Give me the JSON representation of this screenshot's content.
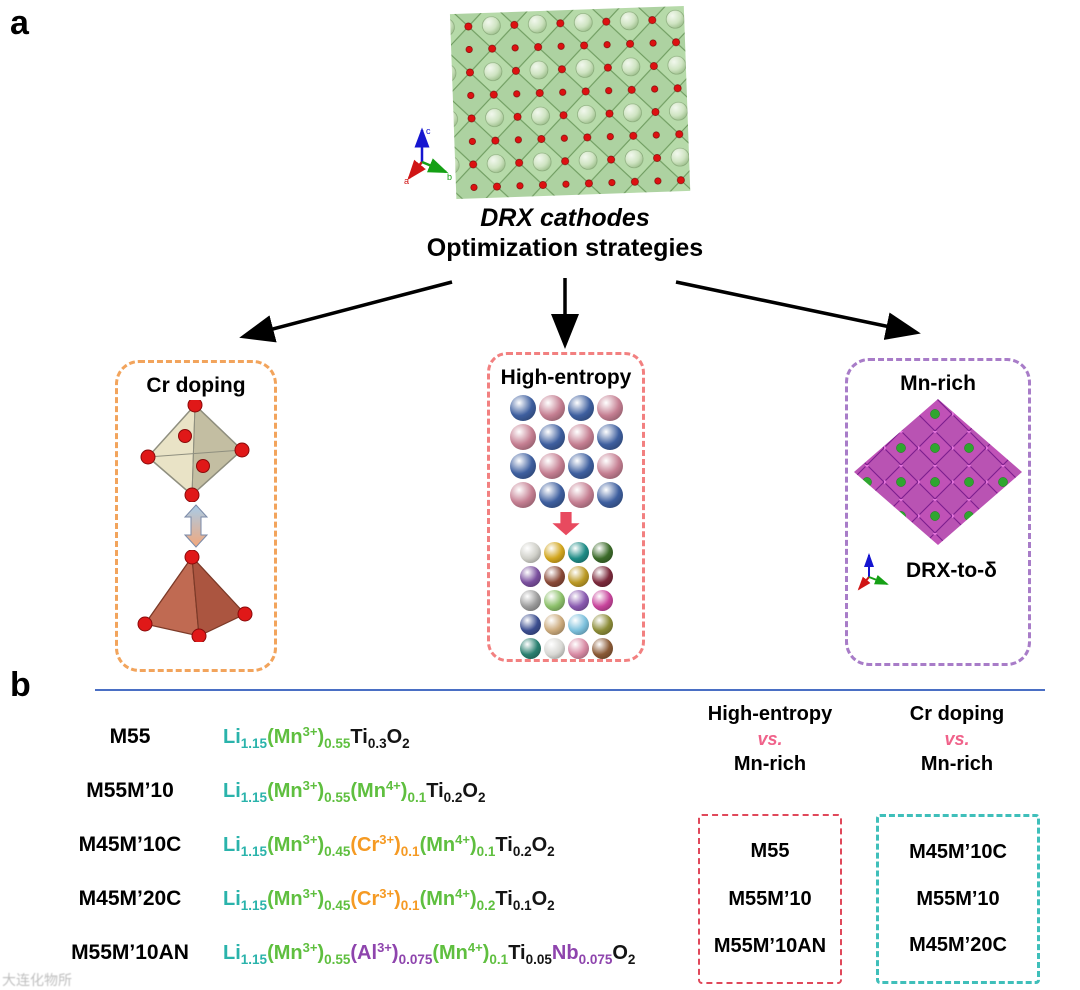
{
  "panel_a": {
    "label": "a",
    "title_line1": "DRX cathodes",
    "title_line2": "Optimization strategies",
    "axis_labels": {
      "a": "a",
      "b": "b",
      "c": "c"
    },
    "boxes": {
      "cr_doping": {
        "title": "Cr doping",
        "border_color": "#f2a45c"
      },
      "high_entropy": {
        "title": "High-entropy",
        "border_color": "#f28080",
        "top_grid": [
          [
            "#3e5f9f",
            "#c57f92",
            "#3e5f9f",
            "#c57f92"
          ],
          [
            "#c57f92",
            "#3e5f9f",
            "#c57f92",
            "#3e5f9f"
          ],
          [
            "#3e5f9f",
            "#c57f92",
            "#3e5f9f",
            "#c57f92"
          ],
          [
            "#c57f92",
            "#3e5f9f",
            "#c57f92",
            "#3e5f9f"
          ]
        ],
        "bottom_grid": [
          [
            "#cfcfc8",
            "#d2a61e",
            "#1f8c86",
            "#3c6b2a"
          ],
          [
            "#7a4f9e",
            "#8a4a38",
            "#bc9a26",
            "#7c2a3c"
          ],
          [
            "#9c9c9c",
            "#8cc06a",
            "#8a5ab0",
            "#c8459c"
          ],
          [
            "#3c4e90",
            "#cbaa7c",
            "#7cc0dc",
            "#8c8c38"
          ],
          [
            "#2a8070",
            "#d8d8d4",
            "#d88aa4",
            "#8a5a36"
          ]
        ]
      },
      "mn_rich": {
        "title": "Mn-rich",
        "border_color": "#a87cc8",
        "caption": "DRX-to-δ"
      }
    }
  },
  "panel_b": {
    "label": "b",
    "colors": {
      "teal": "#2ab3ab",
      "green": "#5fbf3f",
      "orange": "#f59a23",
      "purple": "#8e44ad",
      "black": "#141414"
    },
    "rows": [
      {
        "name": "M55",
        "tokens": [
          {
            "t": "Li",
            "s": "n",
            "c": "teal"
          },
          {
            "t": "1.15",
            "s": "sub",
            "c": "teal"
          },
          {
            "t": "(Mn",
            "s": "n",
            "c": "green"
          },
          {
            "t": "3+",
            "s": "sup",
            "c": "green"
          },
          {
            "t": ")",
            "s": "n",
            "c": "green"
          },
          {
            "t": "0.55",
            "s": "sub",
            "c": "green"
          },
          {
            "t": "Ti",
            "s": "n",
            "c": "black"
          },
          {
            "t": "0.3",
            "s": "sub",
            "c": "black"
          },
          {
            "t": "O",
            "s": "n",
            "c": "black"
          },
          {
            "t": "2",
            "s": "sub",
            "c": "black"
          }
        ]
      },
      {
        "name": "M55M’10",
        "tokens": [
          {
            "t": "Li",
            "s": "n",
            "c": "teal"
          },
          {
            "t": "1.15",
            "s": "sub",
            "c": "teal"
          },
          {
            "t": "(Mn",
            "s": "n",
            "c": "green"
          },
          {
            "t": "3+",
            "s": "sup",
            "c": "green"
          },
          {
            "t": ")",
            "s": "n",
            "c": "green"
          },
          {
            "t": "0.55",
            "s": "sub",
            "c": "green"
          },
          {
            "t": "(Mn",
            "s": "n",
            "c": "green"
          },
          {
            "t": "4+",
            "s": "sup",
            "c": "green"
          },
          {
            "t": ")",
            "s": "n",
            "c": "green"
          },
          {
            "t": "0.1",
            "s": "sub",
            "c": "green"
          },
          {
            "t": "Ti",
            "s": "n",
            "c": "black"
          },
          {
            "t": "0.2",
            "s": "sub",
            "c": "black"
          },
          {
            "t": "O",
            "s": "n",
            "c": "black"
          },
          {
            "t": "2",
            "s": "sub",
            "c": "black"
          }
        ]
      },
      {
        "name": "M45M’10C",
        "tokens": [
          {
            "t": "Li",
            "s": "n",
            "c": "teal"
          },
          {
            "t": "1.15",
            "s": "sub",
            "c": "teal"
          },
          {
            "t": "(Mn",
            "s": "n",
            "c": "green"
          },
          {
            "t": "3+",
            "s": "sup",
            "c": "green"
          },
          {
            "t": ")",
            "s": "n",
            "c": "green"
          },
          {
            "t": "0.45",
            "s": "sub",
            "c": "green"
          },
          {
            "t": "(Cr",
            "s": "n",
            "c": "orange"
          },
          {
            "t": "3+",
            "s": "sup",
            "c": "orange"
          },
          {
            "t": ")",
            "s": "n",
            "c": "orange"
          },
          {
            "t": "0.1",
            "s": "sub",
            "c": "orange"
          },
          {
            "t": "(Mn",
            "s": "n",
            "c": "green"
          },
          {
            "t": "4+",
            "s": "sup",
            "c": "green"
          },
          {
            "t": ")",
            "s": "n",
            "c": "green"
          },
          {
            "t": "0.1",
            "s": "sub",
            "c": "green"
          },
          {
            "t": "Ti",
            "s": "n",
            "c": "black"
          },
          {
            "t": "0.2",
            "s": "sub",
            "c": "black"
          },
          {
            "t": "O",
            "s": "n",
            "c": "black"
          },
          {
            "t": "2",
            "s": "sub",
            "c": "black"
          }
        ]
      },
      {
        "name": "M45M’20C",
        "tokens": [
          {
            "t": "Li",
            "s": "n",
            "c": "teal"
          },
          {
            "t": "1.15",
            "s": "sub",
            "c": "teal"
          },
          {
            "t": "(Mn",
            "s": "n",
            "c": "green"
          },
          {
            "t": "3+",
            "s": "sup",
            "c": "green"
          },
          {
            "t": ")",
            "s": "n",
            "c": "green"
          },
          {
            "t": "0.45",
            "s": "sub",
            "c": "green"
          },
          {
            "t": "(Cr",
            "s": "n",
            "c": "orange"
          },
          {
            "t": "3+",
            "s": "sup",
            "c": "orange"
          },
          {
            "t": ")",
            "s": "n",
            "c": "orange"
          },
          {
            "t": "0.1",
            "s": "sub",
            "c": "orange"
          },
          {
            "t": "(Mn",
            "s": "n",
            "c": "green"
          },
          {
            "t": "4+",
            "s": "sup",
            "c": "green"
          },
          {
            "t": ")",
            "s": "n",
            "c": "green"
          },
          {
            "t": "0.2",
            "s": "sub",
            "c": "green"
          },
          {
            "t": "Ti",
            "s": "n",
            "c": "black"
          },
          {
            "t": "0.1",
            "s": "sub",
            "c": "black"
          },
          {
            "t": "O",
            "s": "n",
            "c": "black"
          },
          {
            "t": "2",
            "s": "sub",
            "c": "black"
          }
        ]
      },
      {
        "name": "M55M’10AN",
        "tokens": [
          {
            "t": "Li",
            "s": "n",
            "c": "teal"
          },
          {
            "t": "1.15",
            "s": "sub",
            "c": "teal"
          },
          {
            "t": "(Mn",
            "s": "n",
            "c": "green"
          },
          {
            "t": "3+",
            "s": "sup",
            "c": "green"
          },
          {
            "t": ")",
            "s": "n",
            "c": "green"
          },
          {
            "t": "0.55",
            "s": "sub",
            "c": "green"
          },
          {
            "t": "(Al",
            "s": "n",
            "c": "purple"
          },
          {
            "t": "3+",
            "s": "sup",
            "c": "purple"
          },
          {
            "t": ")",
            "s": "n",
            "c": "purple"
          },
          {
            "t": "0.075",
            "s": "sub",
            "c": "purple"
          },
          {
            "t": "(Mn",
            "s": "n",
            "c": "green"
          },
          {
            "t": "4+",
            "s": "sup",
            "c": "green"
          },
          {
            "t": ")",
            "s": "n",
            "c": "green"
          },
          {
            "t": "0.1",
            "s": "sub",
            "c": "green"
          },
          {
            "t": "Ti",
            "s": "n",
            "c": "black"
          },
          {
            "t": "0.05",
            "s": "sub",
            "c": "black"
          },
          {
            "t": "Nb",
            "s": "n",
            "c": "purple"
          },
          {
            "t": "0.075",
            "s": "sub",
            "c": "purple"
          },
          {
            "t": "O",
            "s": "n",
            "c": "black"
          },
          {
            "t": "2",
            "s": "sub",
            "c": "black"
          }
        ]
      }
    ],
    "comparisons": [
      {
        "header": "High-entropy",
        "vs": "vs.",
        "against": "Mn-rich",
        "border_color": "#e0485a",
        "items": [
          "M55",
          "M55M’10",
          "M55M’10AN"
        ]
      },
      {
        "header": "Cr doping",
        "vs": "vs.",
        "against": "Mn-rich",
        "border_color": "#3fbfba",
        "items": [
          "M45M’10C",
          "M55M’10",
          "M45M’20C"
        ]
      }
    ]
  },
  "watermark": "大连化物所"
}
